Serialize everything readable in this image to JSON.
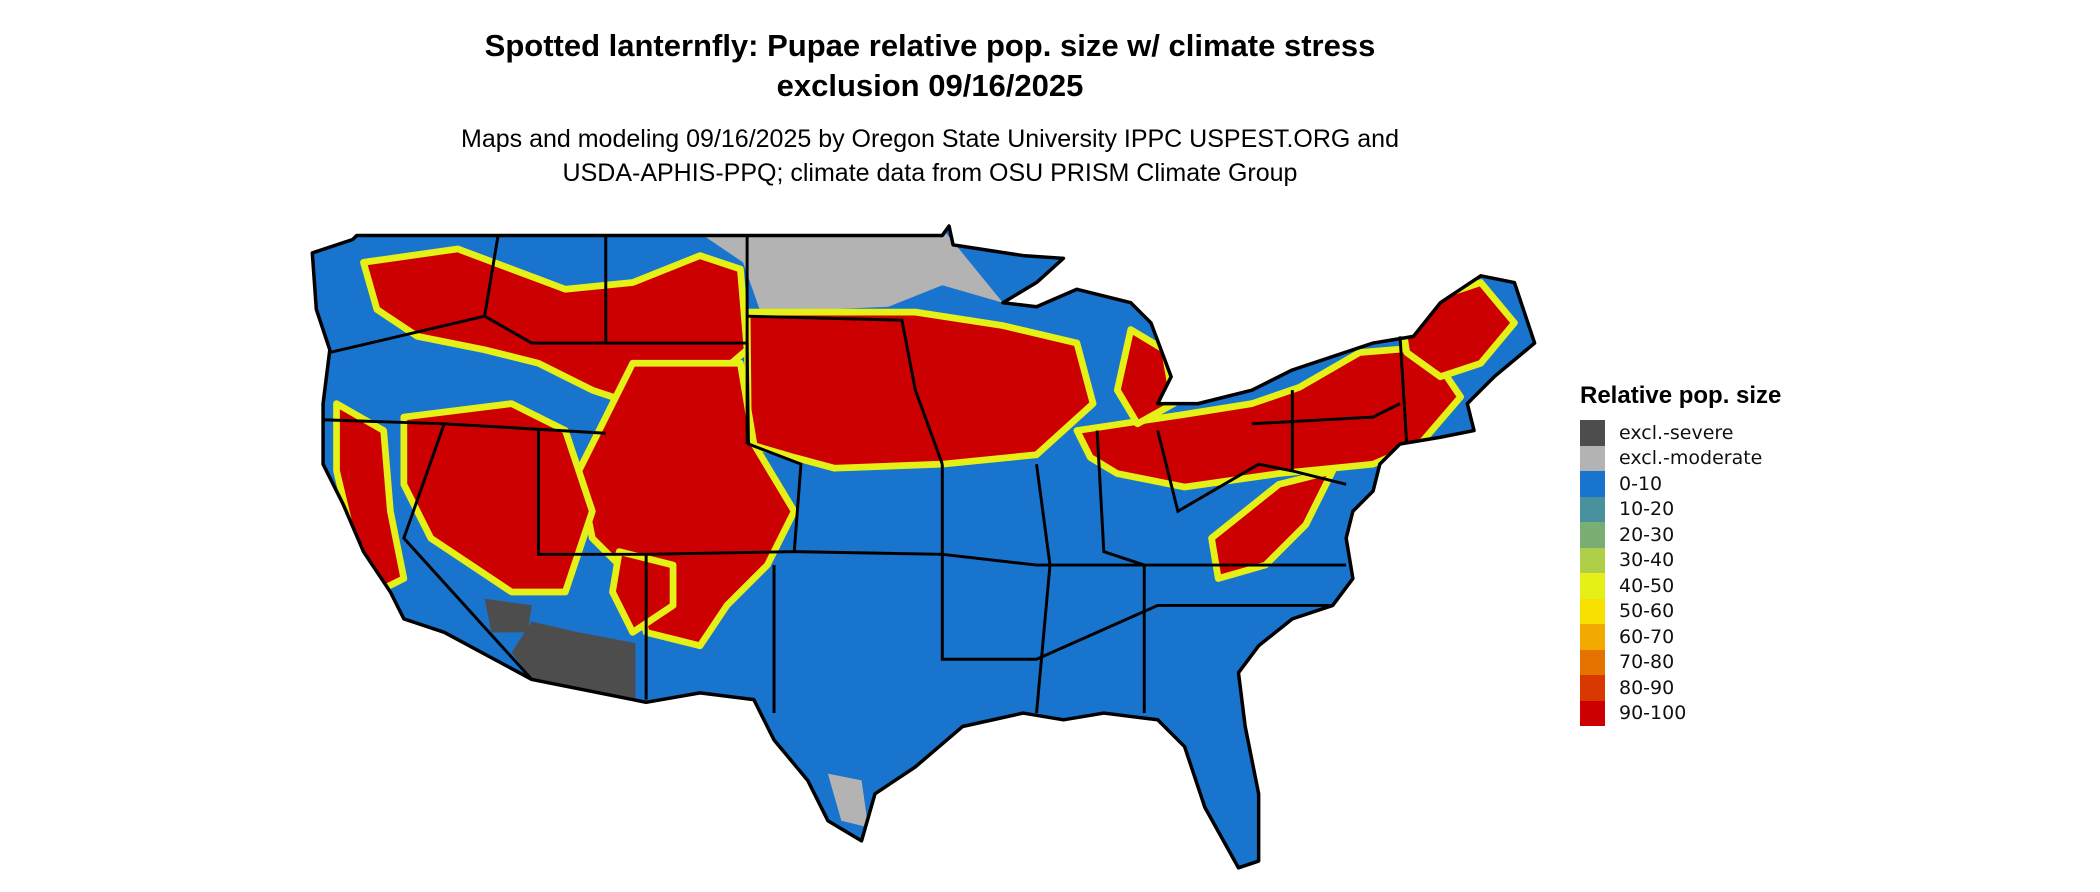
{
  "title_line1": "Spotted lanternfly: Pupae relative pop. size w/ climate stress",
  "title_line2": "exclusion 09/16/2025",
  "subtitle_line1": "Maps and modeling 09/16/2025 by Oregon State University IPPC USPEST.ORG and",
  "subtitle_line2": "USDA-APHIS-PPQ; climate data from OSU PRISM Climate Group",
  "legend": {
    "title": "Relative pop. size",
    "items": [
      {
        "label": "excl.-severe",
        "color": "#4d4d4d"
      },
      {
        "label": "excl.-moderate",
        "color": "#b3b3b3"
      },
      {
        "label": "0-10",
        "color": "#1874cd"
      },
      {
        "label": "10-20",
        "color": "#4a919e"
      },
      {
        "label": "20-30",
        "color": "#7bae74"
      },
      {
        "label": "30-40",
        "color": "#b0cf48"
      },
      {
        "label": "40-50",
        "color": "#e5f016"
      },
      {
        "label": "50-60",
        "color": "#f8e000"
      },
      {
        "label": "60-70",
        "color": "#f2a900"
      },
      {
        "label": "70-80",
        "color": "#e67300"
      },
      {
        "label": "80-90",
        "color": "#d93800"
      },
      {
        "label": "90-100",
        "color": "#cc0000"
      }
    ]
  },
  "map": {
    "region": "Contiguous United States",
    "colors": {
      "base": "#1874cd",
      "high": "#cc0000",
      "fringe": "#e5f016",
      "moderate": "#b3b3b3",
      "severe": "#4d4d4d",
      "border": "#000000"
    }
  }
}
